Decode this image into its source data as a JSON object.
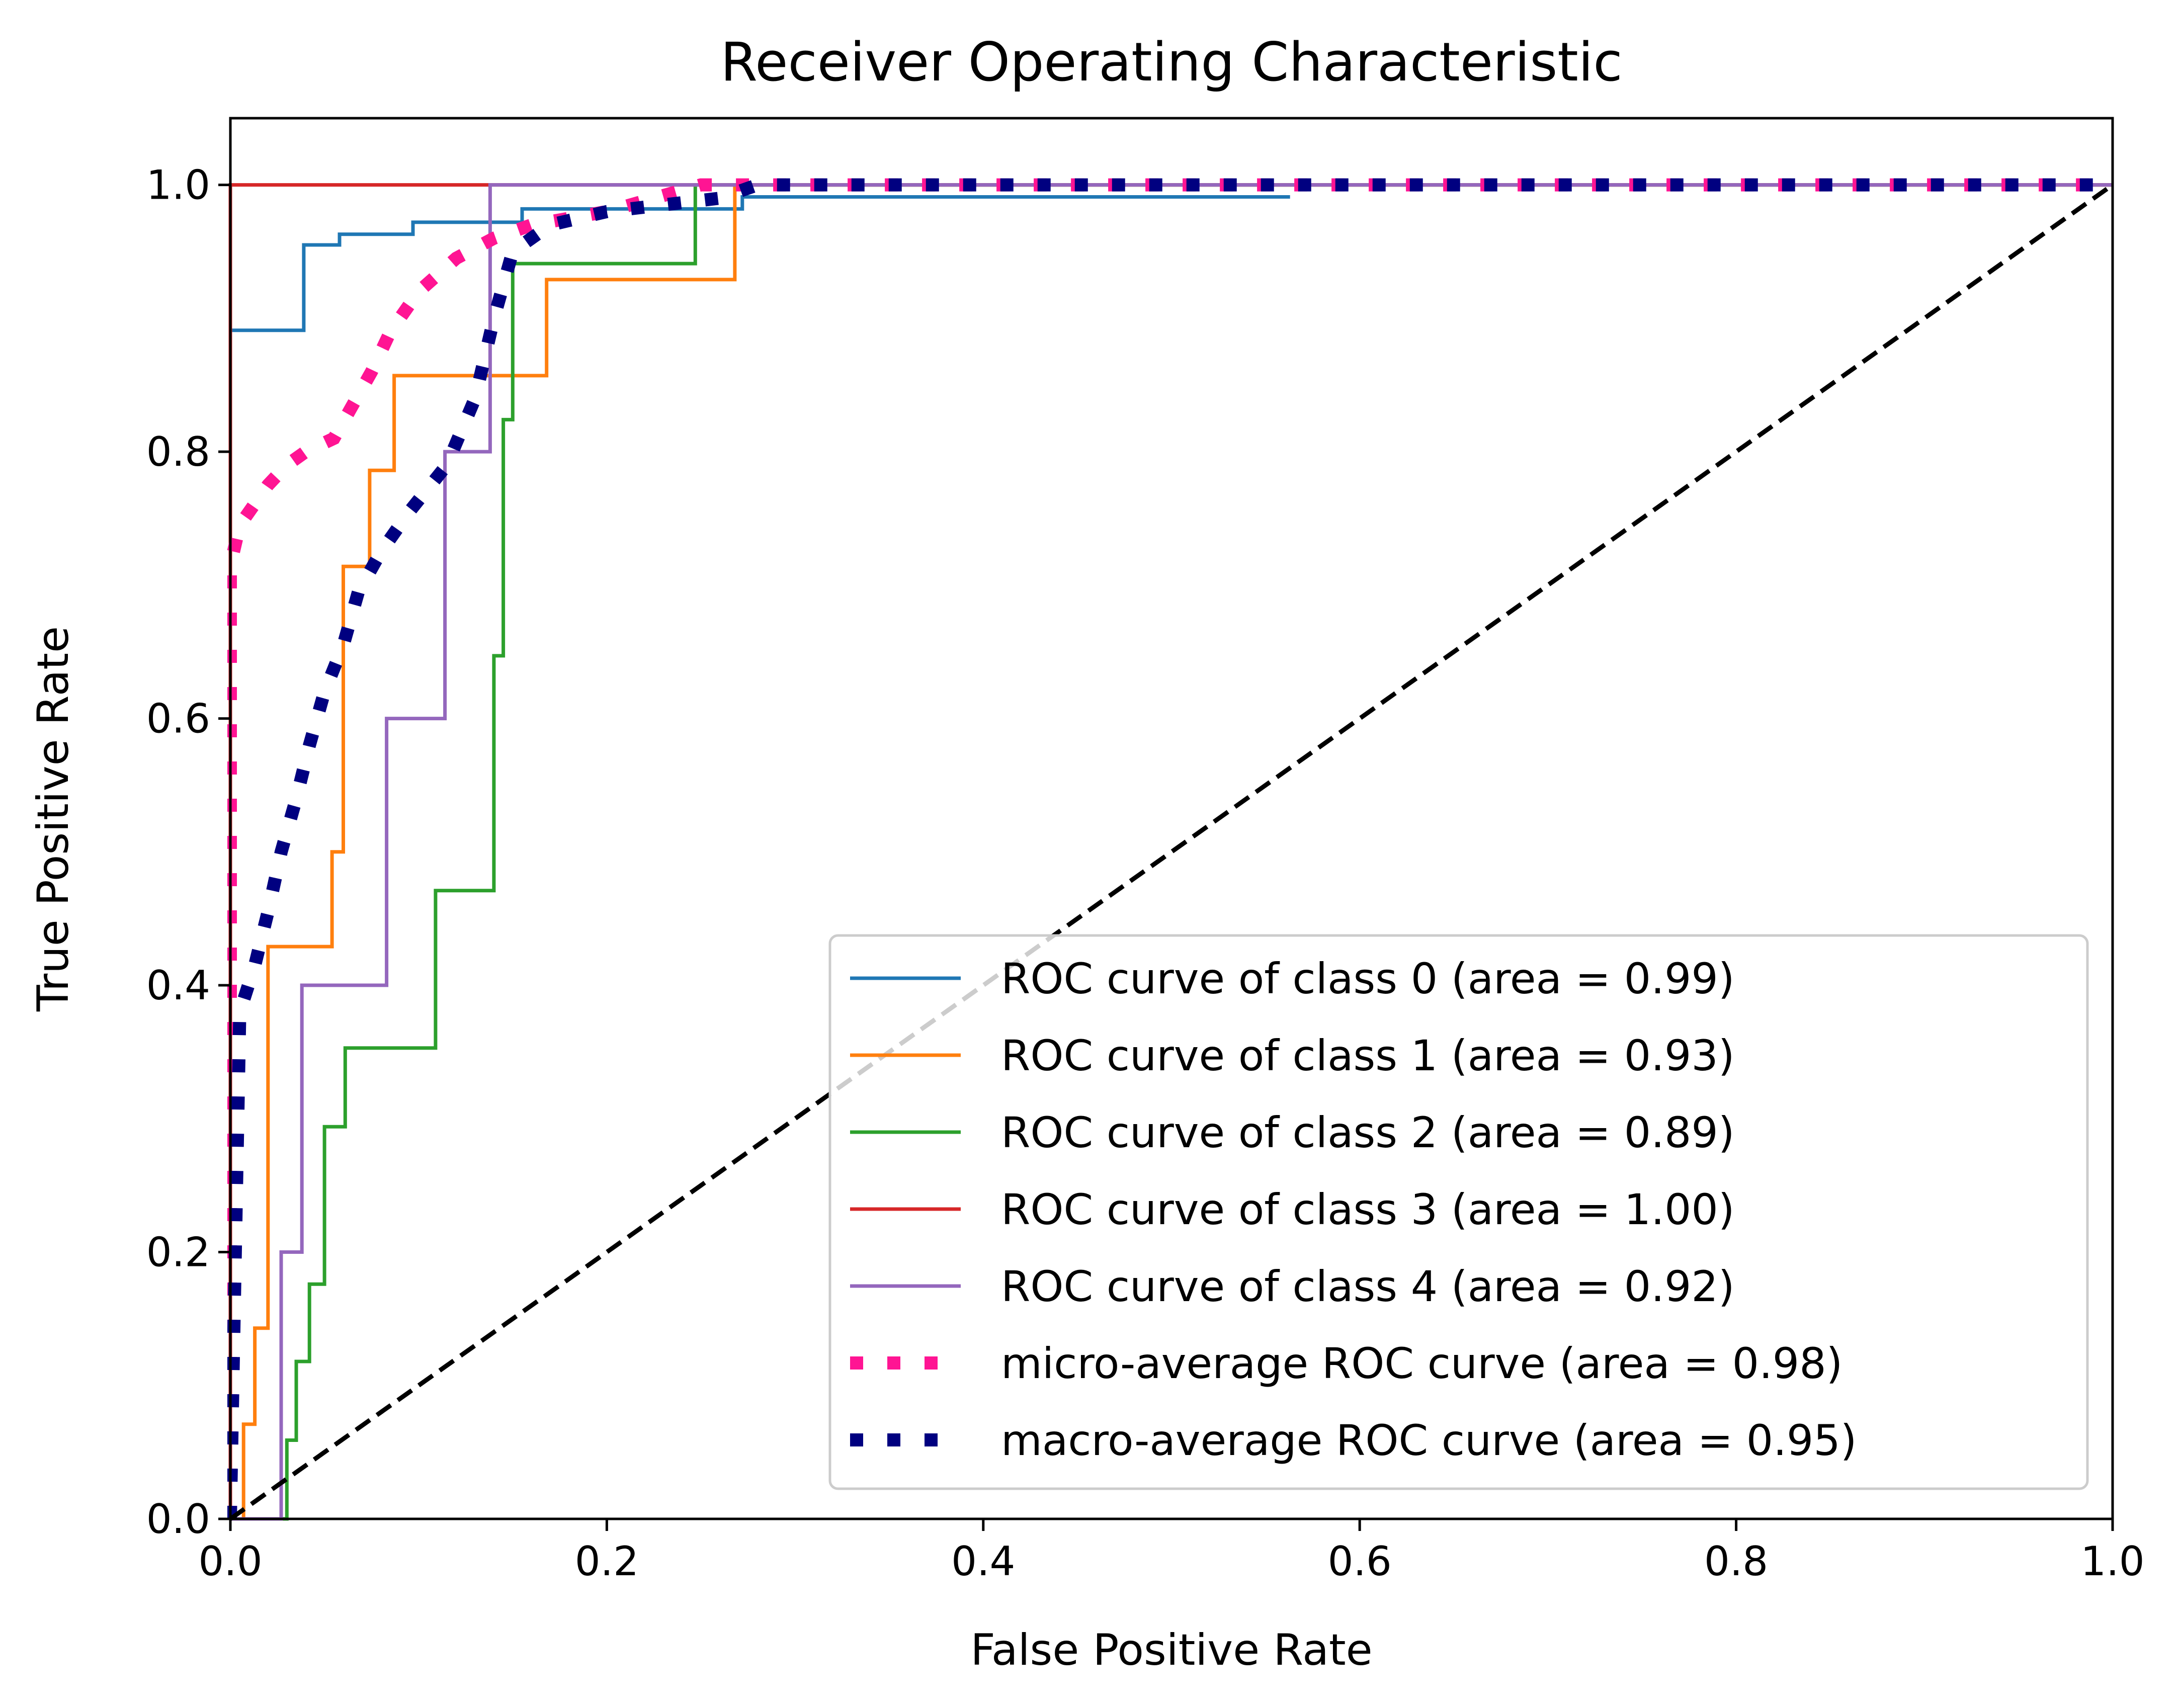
{
  "chart_data": {
    "type": "line",
    "title": "Receiver Operating Characteristic",
    "xlabel": "False Positive Rate",
    "ylabel": "True Positive Rate",
    "xlim": [
      0.0,
      1.0
    ],
    "ylim": [
      0.0,
      1.05
    ],
    "xticks": [
      0.0,
      0.2,
      0.4,
      0.6,
      0.8,
      1.0
    ],
    "xtick_labels": [
      "0.0",
      "0.2",
      "0.4",
      "0.6",
      "0.8",
      "1.0"
    ],
    "yticks": [
      0.0,
      0.2,
      0.4,
      0.6,
      0.8,
      1.0
    ],
    "ytick_labels": [
      "0.0",
      "0.2",
      "0.4",
      "0.6",
      "0.8",
      "1.0"
    ],
    "grid": false,
    "legend_position": "lower-right",
    "series": [
      {
        "name": "ROC curve of class 0 (area = 0.99)",
        "color": "#1f77b4",
        "style": "solid",
        "x": [
          0.0,
          0.0,
          0.039,
          0.039,
          0.058,
          0.058,
          0.097,
          0.097,
          0.155,
          0.155,
          0.272,
          0.272,
          0.563
        ],
        "y": [
          0.0,
          0.891,
          0.891,
          0.955,
          0.955,
          0.963,
          0.963,
          0.972,
          0.972,
          0.982,
          0.982,
          0.991,
          0.991
        ]
      },
      {
        "name": "ROC curve of class 1 (area = 0.93)",
        "color": "#ff7f0e",
        "style": "solid",
        "x": [
          0.0,
          0.007,
          0.007,
          0.013,
          0.013,
          0.02,
          0.02,
          0.054,
          0.054,
          0.06,
          0.06,
          0.074,
          0.074,
          0.087,
          0.087,
          0.168,
          0.168,
          0.268,
          0.268,
          1.0
        ],
        "y": [
          0.0,
          0.0,
          0.071,
          0.071,
          0.143,
          0.143,
          0.429,
          0.429,
          0.5,
          0.5,
          0.714,
          0.714,
          0.786,
          0.786,
          0.857,
          0.857,
          0.929,
          0.929,
          1.0,
          1.0
        ]
      },
      {
        "name": "ROC curve of class 2 (area = 0.89)",
        "color": "#2ca02c",
        "style": "solid",
        "x": [
          0.0,
          0.03,
          0.03,
          0.035,
          0.035,
          0.042,
          0.042,
          0.05,
          0.05,
          0.061,
          0.061,
          0.109,
          0.109,
          0.14,
          0.14,
          0.145,
          0.145,
          0.15,
          0.15,
          0.154,
          0.154,
          0.247,
          0.247,
          1.0
        ],
        "y": [
          0.0,
          0.0,
          0.059,
          0.059,
          0.118,
          0.118,
          0.176,
          0.176,
          0.294,
          0.294,
          0.353,
          0.353,
          0.471,
          0.471,
          0.647,
          0.647,
          0.824,
          0.824,
          0.941,
          0.941,
          0.941,
          0.941,
          1.0,
          1.0
        ]
      },
      {
        "name": "ROC curve of class 3 (area = 1.00)",
        "color": "#d62728",
        "style": "solid",
        "x": [
          0.0,
          0.0,
          0.138,
          1.0
        ],
        "y": [
          0.0,
          1.0,
          1.0,
          1.0
        ]
      },
      {
        "name": "ROC curve of class 4 (area = 0.92)",
        "color": "#9467bd",
        "style": "solid",
        "x": [
          0.0,
          0.027,
          0.027,
          0.038,
          0.038,
          0.083,
          0.083,
          0.114,
          0.114,
          0.138,
          0.138,
          1.0
        ],
        "y": [
          0.0,
          0.0,
          0.2,
          0.2,
          0.4,
          0.4,
          0.6,
          0.6,
          0.8,
          0.8,
          1.0,
          1.0
        ]
      },
      {
        "name": "micro-average ROC curve (area = 0.98)",
        "color": "#ff1493",
        "style": "dotted",
        "x": [
          0.0,
          0.0,
          0.005,
          0.01,
          0.015,
          0.02,
          0.03,
          0.04,
          0.055,
          0.065,
          0.075,
          0.085,
          0.1,
          0.12,
          0.14,
          0.16,
          0.2,
          0.25,
          1.0
        ],
        "y": [
          0.0,
          0.715,
          0.745,
          0.755,
          0.765,
          0.775,
          0.79,
          0.8,
          0.81,
          0.835,
          0.86,
          0.89,
          0.92,
          0.945,
          0.96,
          0.97,
          0.98,
          1.0,
          1.0
        ]
      },
      {
        "name": "macro-average ROC curve (area = 0.95)",
        "color": "#000080",
        "style": "dotted",
        "x": [
          0.0,
          0.005,
          0.013,
          0.02,
          0.027,
          0.035,
          0.042,
          0.05,
          0.06,
          0.068,
          0.08,
          0.095,
          0.115,
          0.13,
          0.14,
          0.15,
          0.17,
          0.2,
          0.26,
          0.28,
          1.0
        ],
        "y": [
          0.0,
          0.38,
          0.415,
          0.455,
          0.5,
          0.54,
          0.58,
          0.62,
          0.655,
          0.695,
          0.725,
          0.755,
          0.79,
          0.84,
          0.9,
          0.95,
          0.97,
          0.98,
          0.99,
          1.0,
          1.0
        ]
      },
      {
        "name": "",
        "color": "#000000",
        "style": "dashed",
        "x": [
          0.0,
          1.0
        ],
        "y": [
          0.0,
          1.0
        ]
      }
    ]
  }
}
